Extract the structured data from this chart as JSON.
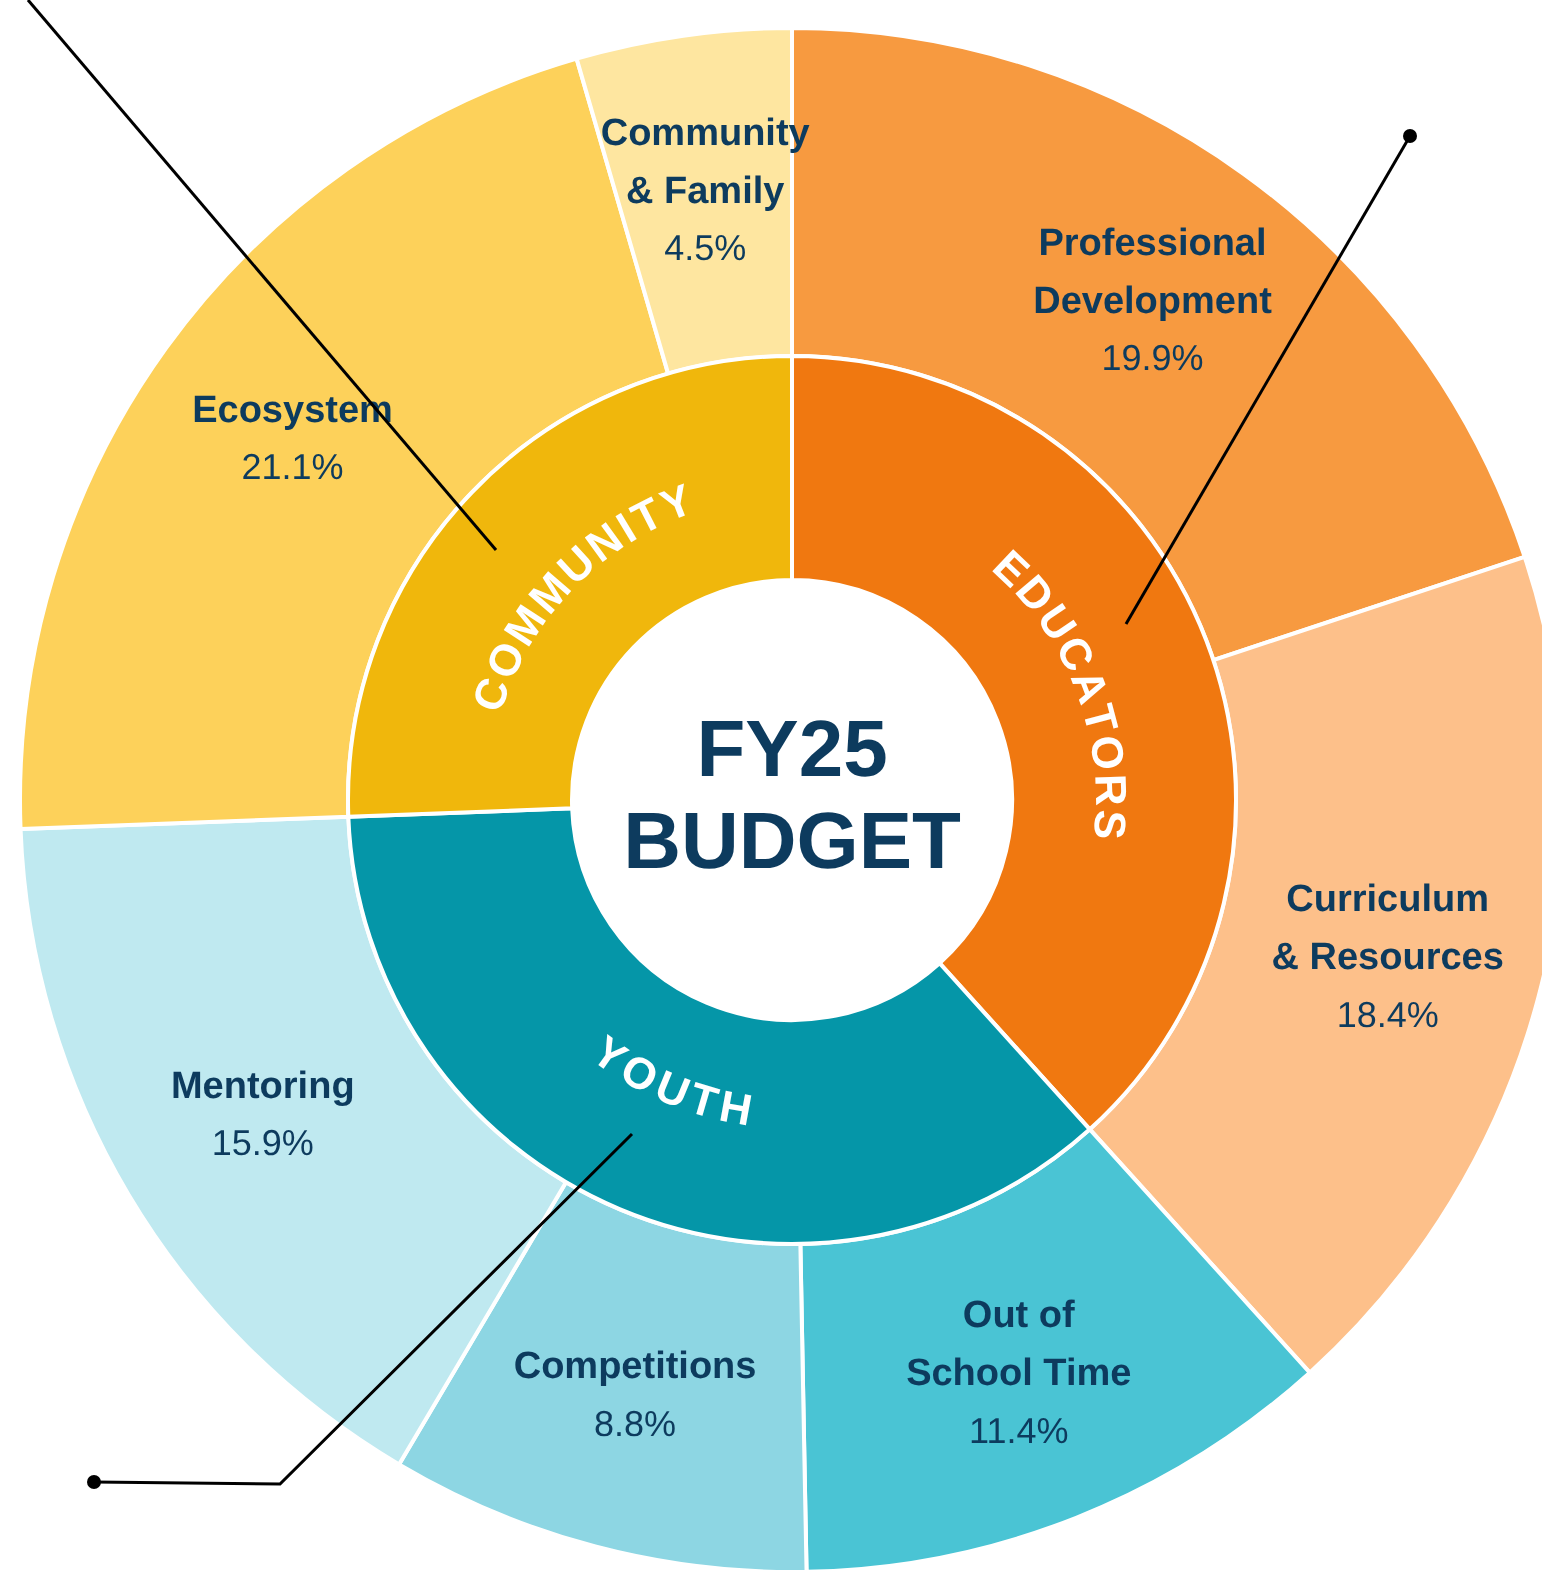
{
  "chart_data": [
    {
      "type": "donut",
      "title": "FY25 BUDGET",
      "legend": false,
      "categories": [
        "EDUCATORS",
        "YOUTH",
        "COMMUNITY"
      ],
      "values": [
        38.3,
        36.1,
        25.6
      ],
      "colors": [
        "#f07810",
        "#0596a8",
        "#f0b70c"
      ]
    },
    {
      "type": "donut",
      "legend": false,
      "categories": [
        "Professional Development",
        "Curriculum & Resources",
        "Out of School Time",
        "Competitions",
        "Mentoring",
        "Ecosystem",
        "Community & Family"
      ],
      "values": [
        19.9,
        18.4,
        11.4,
        8.8,
        15.9,
        21.1,
        4.5
      ],
      "colors": [
        "#f79a40",
        "#fdc08a",
        "#4ac4d4",
        "#8dd6e3",
        "#bfe9f0",
        "#fdd15a",
        "#fee6a0"
      ],
      "value_labels": [
        "19.9%",
        "18.4%",
        "11.4%",
        "8.8%",
        "15.9%",
        "21.1%",
        "4.5%"
      ]
    }
  ]
}
